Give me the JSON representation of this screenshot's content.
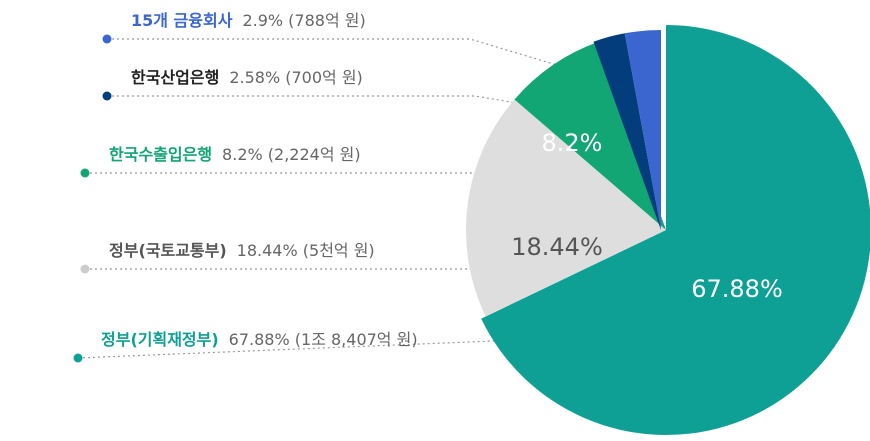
{
  "chart_data": {
    "type": "pie",
    "slices": [
      {
        "name": "정부(기획재정부)",
        "percent": 67.88,
        "value_text": "67.88% (1조 8,407억 원)",
        "label": "67.88%",
        "color": "#0fa095"
      },
      {
        "name": "정부(국토교통부)",
        "percent": 18.44,
        "value_text": "18.44% (5천억 원)",
        "label": "18.44%",
        "color": "#dedede"
      },
      {
        "name": "한국수출입은행",
        "percent": 8.2,
        "value_text": "8.2% (2,224억 원)",
        "label": "8.2%",
        "color": "#11a673"
      },
      {
        "name": "한국산업은행",
        "percent": 2.58,
        "value_text": "2.58% (700억 원)",
        "label": "",
        "color": "#033d7c"
      },
      {
        "name": "15개 금융회사",
        "percent": 2.9,
        "value_text": "2.9% (788억 원)",
        "label": "",
        "color": "#3b66d0"
      }
    ]
  },
  "colors": {
    "legend_name": [
      "#0fa095",
      "#555555",
      "#11a673",
      "#222222",
      "#3b66d0"
    ],
    "dot": [
      "#0fa095",
      "#cccccc",
      "#11a673",
      "#033d7c",
      "#3b66d0"
    ],
    "slice_label": [
      "#ffffff",
      "#555555",
      "#ffffff",
      "#ffffff",
      "#ffffff"
    ],
    "leader": "#999999"
  }
}
